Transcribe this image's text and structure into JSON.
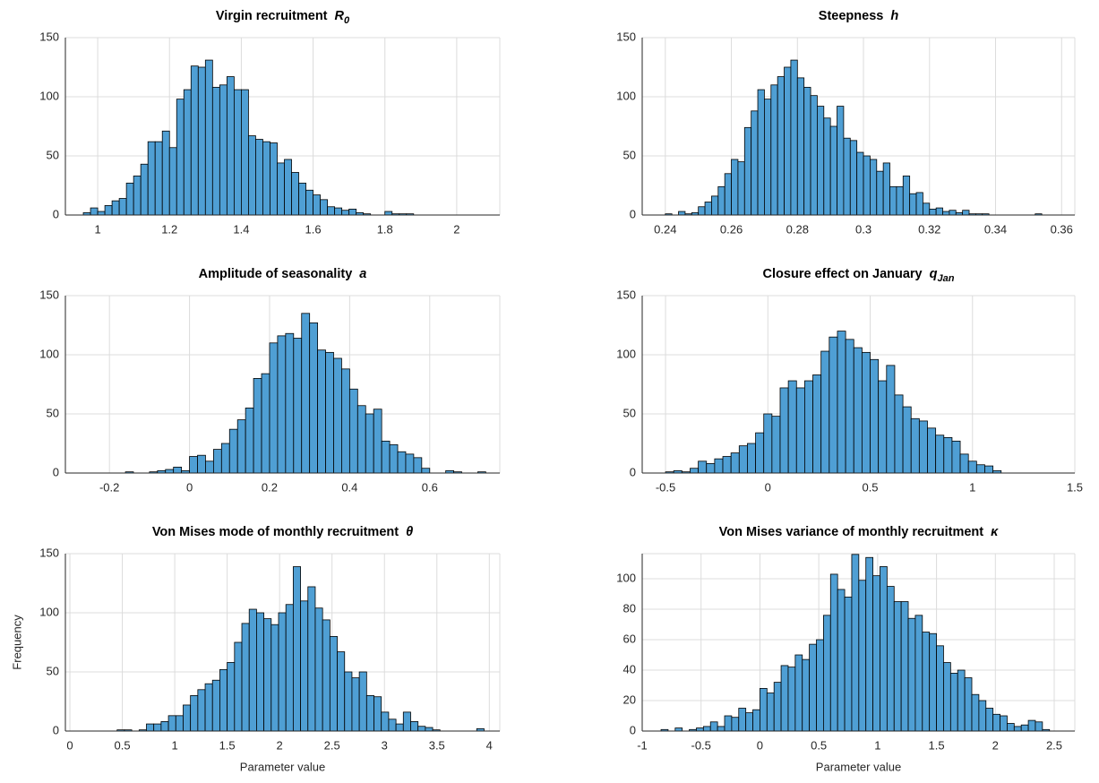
{
  "chart_data": [
    {
      "type": "histogram",
      "title": "Virgin recruitment",
      "title_symbol": "R",
      "title_subscript": "0",
      "bins": [
        0.96,
        0.98,
        1.0,
        1.02,
        1.04,
        1.06,
        1.08,
        1.1,
        1.12,
        1.14,
        1.16,
        1.18,
        1.2,
        1.22,
        1.24,
        1.26,
        1.28,
        1.3,
        1.32,
        1.34,
        1.36,
        1.38,
        1.4,
        1.42,
        1.44,
        1.46,
        1.48,
        1.5,
        1.52,
        1.54,
        1.56,
        1.58,
        1.6,
        1.62,
        1.64,
        1.66,
        1.68,
        1.7,
        1.72,
        1.74,
        1.76,
        1.78,
        1.8,
        1.82,
        1.84,
        1.86,
        1.88,
        1.9,
        1.92
      ],
      "values": [
        2,
        6,
        3,
        8,
        12,
        14,
        27,
        33,
        43,
        62,
        62,
        71,
        57,
        98,
        106,
        126,
        125,
        131,
        108,
        110,
        117,
        106,
        106,
        67,
        64,
        62,
        61,
        44,
        47,
        36,
        27,
        21,
        17,
        13,
        7,
        6,
        4,
        5,
        2,
        1,
        0,
        0,
        3,
        1,
        1,
        1,
        0,
        0
      ],
      "color": "#4f9fd4",
      "xlim": [
        0.91,
        2.12
      ],
      "xticks": [
        1,
        1.2,
        1.4,
        1.6,
        1.8,
        2
      ],
      "ylim": [
        0,
        150
      ],
      "yticks": [
        0,
        50,
        100,
        150
      ],
      "grid": true
    },
    {
      "type": "histogram",
      "title": "Steepness",
      "title_symbol": "h",
      "bins": [
        0.24,
        0.242,
        0.244,
        0.246,
        0.248,
        0.25,
        0.252,
        0.254,
        0.256,
        0.258,
        0.26,
        0.262,
        0.264,
        0.266,
        0.268,
        0.27,
        0.272,
        0.274,
        0.276,
        0.278,
        0.28,
        0.282,
        0.284,
        0.286,
        0.288,
        0.29,
        0.292,
        0.294,
        0.296,
        0.298,
        0.3,
        0.302,
        0.304,
        0.306,
        0.308,
        0.31,
        0.312,
        0.314,
        0.316,
        0.318,
        0.32,
        0.322,
        0.324,
        0.326,
        0.328,
        0.33,
        0.332,
        0.334,
        0.336,
        0.338,
        0.34,
        0.342,
        0.344,
        0.346,
        0.348,
        0.35,
        0.352,
        0.354
      ],
      "values": [
        1,
        0,
        3,
        1,
        2,
        7,
        11,
        16,
        24,
        35,
        47,
        45,
        74,
        88,
        106,
        98,
        110,
        117,
        125,
        131,
        116,
        108,
        101,
        92,
        82,
        75,
        92,
        65,
        63,
        53,
        50,
        47,
        37,
        44,
        24,
        24,
        33,
        18,
        19,
        10,
        5,
        6,
        3,
        4,
        2,
        4,
        1,
        1,
        1,
        0,
        0,
        0,
        0,
        0,
        0,
        0,
        1
      ],
      "color": "#4f9fd4",
      "xlim": [
        0.233,
        0.364
      ],
      "xticks": [
        0.24,
        0.26,
        0.28,
        0.3,
        0.32,
        0.34,
        0.36
      ],
      "ylim": [
        0,
        150
      ],
      "yticks": [
        0,
        50,
        100,
        150
      ],
      "grid": true
    },
    {
      "type": "histogram",
      "title": "Amplitude of seasonality",
      "title_symbol": "a",
      "bins": [
        -0.16,
        -0.14,
        -0.12,
        -0.1,
        -0.08,
        -0.06,
        -0.04,
        -0.02,
        0,
        0.02,
        0.04,
        0.06,
        0.08,
        0.1,
        0.12,
        0.14,
        0.16,
        0.18,
        0.2,
        0.22,
        0.24,
        0.26,
        0.28,
        0.3,
        0.32,
        0.34,
        0.36,
        0.38,
        0.4,
        0.42,
        0.44,
        0.46,
        0.48,
        0.5,
        0.52,
        0.54,
        0.56,
        0.58,
        0.6,
        0.62,
        0.64,
        0.66,
        0.68,
        0.7,
        0.72,
        0.74
      ],
      "values": [
        1,
        0,
        0,
        1,
        2,
        3,
        5,
        2,
        14,
        15,
        10,
        20,
        25,
        37,
        45,
        55,
        80,
        84,
        110,
        116,
        118,
        114,
        135,
        127,
        104,
        102,
        97,
        88,
        71,
        57,
        50,
        54,
        27,
        24,
        18,
        16,
        13,
        4,
        0,
        0,
        2,
        1,
        0,
        0,
        1
      ],
      "color": "#4f9fd4",
      "xlim": [
        -0.31,
        0.775
      ],
      "xticks": [
        -0.2,
        0,
        0.2,
        0.4,
        0.6
      ],
      "ylim": [
        0,
        150
      ],
      "yticks": [
        0,
        50,
        100,
        150
      ],
      "grid": true
    },
    {
      "type": "histogram",
      "title": "Closure effect on January",
      "title_symbol": "q",
      "title_subscript": "Jan",
      "bins": [
        -0.5,
        -0.46,
        -0.42,
        -0.38,
        -0.34,
        -0.3,
        -0.26,
        -0.22,
        -0.18,
        -0.14,
        -0.1,
        -0.06,
        -0.02,
        0.02,
        0.06,
        0.1,
        0.14,
        0.18,
        0.22,
        0.26,
        0.3,
        0.34,
        0.38,
        0.42,
        0.46,
        0.5,
        0.54,
        0.58,
        0.62,
        0.66,
        0.7,
        0.74,
        0.78,
        0.82,
        0.86,
        0.9,
        0.94,
        0.98,
        1.02,
        1.06,
        1.1,
        1.14
      ],
      "values": [
        1,
        2,
        1,
        4,
        10,
        8,
        12,
        14,
        17,
        23,
        25,
        34,
        50,
        48,
        72,
        78,
        72,
        78,
        83,
        103,
        115,
        120,
        113,
        106,
        102,
        96,
        78,
        91,
        66,
        56,
        46,
        44,
        38,
        32,
        30,
        27,
        16,
        10,
        7,
        6,
        2
      ],
      "color": "#4f9fd4",
      "xlim": [
        -0.614,
        1.5
      ],
      "xticks": [
        -0.5,
        0,
        0.5,
        1,
        1.5
      ],
      "ylim": [
        0,
        150
      ],
      "yticks": [
        0,
        50,
        100,
        150
      ],
      "grid": true
    },
    {
      "type": "histogram",
      "title": "Von Mises mode of monthly recruitment",
      "title_symbol": "θ",
      "bins": [
        0.45,
        0.52,
        0.59,
        0.66,
        0.73,
        0.8,
        0.87,
        0.94,
        1.01,
        1.08,
        1.15,
        1.22,
        1.29,
        1.36,
        1.43,
        1.5,
        1.57,
        1.64,
        1.71,
        1.78,
        1.85,
        1.92,
        1.99,
        2.06,
        2.13,
        2.2,
        2.27,
        2.34,
        2.41,
        2.48,
        2.55,
        2.62,
        2.69,
        2.76,
        2.83,
        2.9,
        2.97,
        3.04,
        3.11,
        3.18,
        3.25,
        3.32,
        3.39,
        3.46,
        3.53,
        3.6,
        3.67,
        3.74,
        3.81,
        3.88,
        3.95
      ],
      "values": [
        1,
        1,
        0,
        1,
        6,
        6,
        8,
        13,
        13,
        22,
        30,
        35,
        40,
        43,
        52,
        58,
        75,
        91,
        103,
        100,
        95,
        90,
        100,
        107,
        139,
        110,
        122,
        104,
        94,
        80,
        67,
        50,
        45,
        50,
        30,
        29,
        16,
        10,
        6,
        16,
        8,
        4,
        3,
        1,
        0,
        0,
        0,
        0,
        0,
        2
      ],
      "color": "#4f9fd4",
      "xlim": [
        -0.043,
        4.1
      ],
      "xticks": [
        0,
        0.5,
        1,
        1.5,
        2,
        2.5,
        3,
        3.5,
        4
      ],
      "ylim": [
        0,
        150
      ],
      "yticks": [
        0,
        50,
        100,
        150
      ],
      "grid": true,
      "xlabel": "Parameter value",
      "ylabel": "Frequency"
    },
    {
      "type": "histogram",
      "title": "Von Mises variance of monthly recruitment",
      "title_symbol": "κ",
      "bins": [
        -0.84,
        -0.78,
        -0.72,
        -0.66,
        -0.6,
        -0.54,
        -0.48,
        -0.42,
        -0.36,
        -0.3,
        -0.24,
        -0.18,
        -0.12,
        -0.06,
        0,
        0.06,
        0.12,
        0.18,
        0.24,
        0.3,
        0.36,
        0.42,
        0.48,
        0.54,
        0.6,
        0.66,
        0.72,
        0.78,
        0.84,
        0.9,
        0.96,
        1.02,
        1.08,
        1.14,
        1.2,
        1.26,
        1.32,
        1.38,
        1.44,
        1.5,
        1.56,
        1.62,
        1.68,
        1.74,
        1.8,
        1.86,
        1.92,
        1.98,
        2.04,
        2.1,
        2.16,
        2.22,
        2.28,
        2.34,
        2.4,
        2.46
      ],
      "values": [
        1,
        0,
        2,
        0,
        1,
        2,
        3,
        6,
        3,
        10,
        9,
        15,
        12,
        14,
        28,
        25,
        32,
        43,
        42,
        50,
        47,
        57,
        60,
        76,
        103,
        93,
        88,
        116,
        99,
        114,
        102,
        108,
        95,
        85,
        85,
        74,
        76,
        65,
        64,
        56,
        45,
        38,
        40,
        35,
        24,
        20,
        15,
        11,
        10,
        5,
        3,
        4,
        7,
        6,
        1
      ],
      "color": "#4f9fd4",
      "xlim": [
        -1,
        2.675
      ],
      "xticks": [
        -1,
        -0.5,
        0,
        0.5,
        1,
        1.5,
        2,
        2.5
      ],
      "ylim": [
        0,
        116.5
      ],
      "yticks": [
        0,
        20,
        40,
        60,
        80,
        100
      ],
      "grid": true,
      "xlabel": "Parameter value"
    }
  ]
}
